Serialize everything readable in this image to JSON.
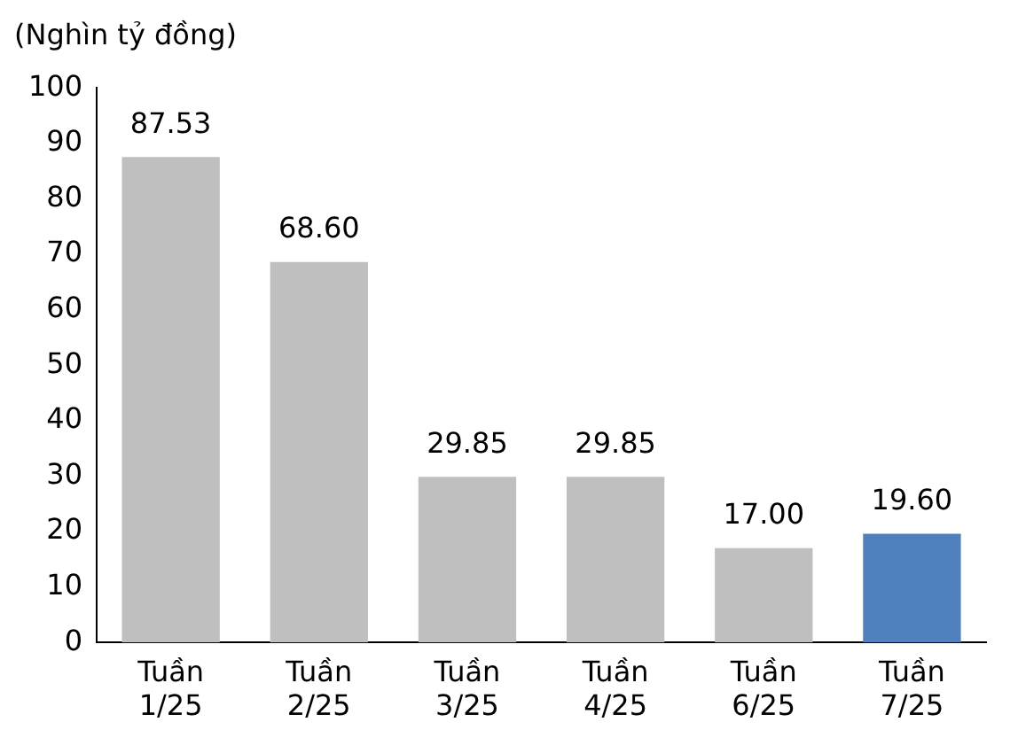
{
  "chart_data": {
    "type": "bar",
    "ylabel": "(Nghìn tỷ đồng)",
    "categories": [
      "Tuần 1/25",
      "Tuần 2/25",
      "Tuần 3/25",
      "Tuần 4/25",
      "Tuần 6/25",
      "Tuần 7/25"
    ],
    "values": [
      87.53,
      68.6,
      29.85,
      29.85,
      17.0,
      19.6
    ],
    "value_labels": [
      "87.53",
      "68.60",
      "29.85",
      "29.85",
      "17.00",
      "19.60"
    ],
    "colors": [
      "#bfbfbf",
      "#bfbfbf",
      "#bfbfbf",
      "#bfbfbf",
      "#bfbfbf",
      "#4f81bd"
    ],
    "ylim": [
      0,
      100
    ],
    "yticks": [
      0,
      10,
      20,
      30,
      40,
      50,
      60,
      70,
      80,
      90,
      100
    ],
    "grid": false,
    "legend": false
  }
}
